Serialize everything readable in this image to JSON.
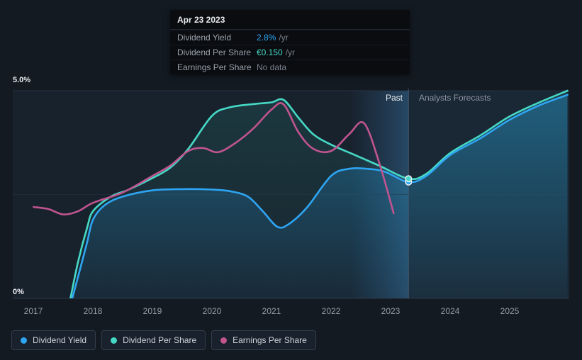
{
  "tooltip": {
    "date": "Apr 23 2023",
    "rows": [
      {
        "label": "Dividend Yield",
        "value": "2.8%",
        "suffix": "/yr"
      },
      {
        "label": "Dividend Per Share",
        "value": "€0.150",
        "suffix": "/yr"
      },
      {
        "label": "Earnings Per Share",
        "value": "No data",
        "suffix": ""
      }
    ]
  },
  "axis": {
    "y_top": "5.0%",
    "y_bottom": "0%"
  },
  "labels": {
    "past": "Past",
    "forecast": "Analysts Forecasts"
  },
  "legend": [
    {
      "label": "Dividend Yield",
      "color": "#2ea5f2"
    },
    {
      "label": "Dividend Per Share",
      "color": "#46d8c6"
    },
    {
      "label": "Earnings Per Share",
      "color": "#c0548f"
    }
  ],
  "chart_data": {
    "type": "line",
    "ylabel": "percent",
    "xlim": [
      2016.65,
      2026.0
    ],
    "ylim": [
      0,
      5.0
    ],
    "x_ticks": [
      2017,
      2018,
      2019,
      2020,
      2021,
      2022,
      2023,
      2024,
      2025
    ],
    "gridlines_pct": [
      5.0,
      2.5,
      0
    ],
    "divider_x": 2023.3,
    "highlight_band": [
      2022.32,
      2023.3
    ],
    "legend_position": "bottom-left",
    "series": [
      {
        "name": "Dividend Yield",
        "color": "#2ea5f2",
        "area": "blue",
        "x": [
          2017.65,
          2017.78,
          2017.9,
          2018.0,
          2018.2,
          2018.5,
          2019.0,
          2019.5,
          2020.0,
          2020.3,
          2020.6,
          2020.85,
          2021.1,
          2021.3,
          2021.6,
          2022.0,
          2022.3,
          2022.6,
          2022.9,
          2023.3,
          2023.6,
          2024.0,
          2024.5,
          2025.0,
          2025.5,
          2025.97
        ],
        "y": [
          0,
          0.7,
          1.35,
          1.9,
          2.25,
          2.45,
          2.6,
          2.63,
          2.62,
          2.58,
          2.45,
          2.1,
          1.72,
          1.8,
          2.2,
          2.95,
          3.12,
          3.12,
          3.05,
          2.8,
          2.95,
          3.45,
          3.85,
          4.3,
          4.65,
          4.9
        ]
      },
      {
        "name": "Dividend Per Share",
        "color": "#46d8c6",
        "area": "teal",
        "x": [
          2017.62,
          2017.75,
          2017.9,
          2018.0,
          2018.3,
          2018.6,
          2019.0,
          2019.3,
          2019.6,
          2020.0,
          2020.3,
          2020.7,
          2021.0,
          2021.2,
          2021.45,
          2021.7,
          2022.0,
          2022.4,
          2022.8,
          2023.3,
          2023.6,
          2024.0,
          2024.5,
          2025.0,
          2025.5,
          2025.97
        ],
        "y": [
          0,
          0.9,
          1.7,
          2.1,
          2.45,
          2.62,
          2.9,
          3.15,
          3.6,
          4.4,
          4.6,
          4.68,
          4.72,
          4.78,
          4.35,
          3.95,
          3.7,
          3.45,
          3.2,
          2.88,
          3.0,
          3.5,
          3.92,
          4.38,
          4.72,
          5.0
        ]
      },
      {
        "name": "Earnings Per Share",
        "color": "#c0548f",
        "area": "none",
        "x": [
          2017.0,
          2017.25,
          2017.5,
          2017.75,
          2018.0,
          2018.5,
          2019.0,
          2019.3,
          2019.6,
          2019.85,
          2020.1,
          2020.4,
          2020.7,
          2021.0,
          2021.2,
          2021.45,
          2021.7,
          2022.0,
          2022.3,
          2022.55,
          2022.8,
          2023.05
        ],
        "y": [
          2.2,
          2.15,
          2.02,
          2.1,
          2.3,
          2.55,
          2.95,
          3.2,
          3.55,
          3.62,
          3.52,
          3.75,
          4.1,
          4.55,
          4.67,
          4.0,
          3.6,
          3.55,
          3.95,
          4.22,
          3.3,
          2.05
        ]
      }
    ],
    "markers": [
      {
        "x": 2023.3,
        "y": 2.8,
        "series": 0
      },
      {
        "x": 2023.3,
        "y": 2.88,
        "series": 1
      }
    ]
  }
}
